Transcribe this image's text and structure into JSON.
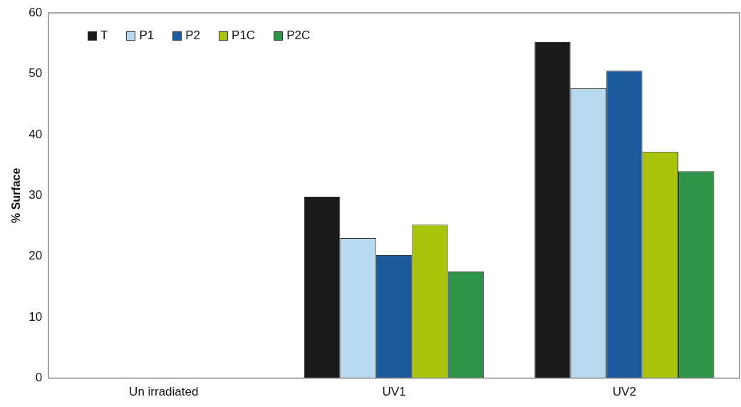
{
  "chart_data": {
    "type": "bar",
    "ylabel": "% Surface",
    "categories": [
      "Un irradiated",
      "UV1",
      "UV2"
    ],
    "series": [
      {
        "name": "T",
        "color": "#1a1a1a",
        "values": [
          0,
          29.8,
          55.2
        ]
      },
      {
        "name": "P1",
        "color": "#b8d9ee",
        "values": [
          0,
          23,
          47.6
        ]
      },
      {
        "name": "P2",
        "color": "#1c5a9e",
        "values": [
          0,
          20.2,
          50.5
        ]
      },
      {
        "name": "P1C",
        "color": "#a9c40a",
        "values": [
          0,
          25.2,
          37.2
        ]
      },
      {
        "name": "P2C",
        "color": "#2e9447",
        "values": [
          0,
          17.5,
          34
        ]
      }
    ],
    "ylim": [
      0,
      60
    ],
    "yticks": [
      0,
      10,
      20,
      30,
      40,
      50,
      60
    ],
    "grid": false,
    "legend": "top left"
  }
}
